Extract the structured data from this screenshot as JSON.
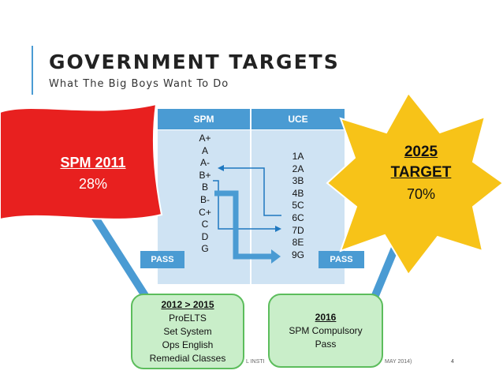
{
  "header": {
    "title": "GOVERNMENT TARGETS",
    "subtitle": "What The Big Boys Want To Do"
  },
  "table": {
    "headers": [
      "SPM",
      "UCE"
    ],
    "spm_grades": [
      "A+",
      "A",
      "A-",
      "B+",
      "B",
      "B-",
      "C+",
      "C",
      "D",
      "G"
    ],
    "uce_grades": [
      "1A",
      "2A",
      "3B",
      "4B",
      "5C",
      "6C",
      "7D",
      "8E",
      "9G"
    ],
    "pass_left": "PASS",
    "pass_right": "PASS"
  },
  "flag": {
    "line1": "SPM 2011",
    "line2": "28%",
    "color": "#e8201f"
  },
  "star": {
    "line1": "2025",
    "line2": "TARGET",
    "line3": "70%",
    "color": "#f7c318"
  },
  "box_2012": {
    "lines": [
      "2012 > 2015",
      "ProELTS",
      "Set System",
      "Ops English",
      "Remedial Classes"
    ]
  },
  "box_2016": {
    "lines": [
      "2016",
      "SPM Compulsory",
      "Pass"
    ]
  },
  "footer": {
    "left_fragment": "L INSTI",
    "right_fragment": "MAY 2014)",
    "slide_number": "4"
  }
}
